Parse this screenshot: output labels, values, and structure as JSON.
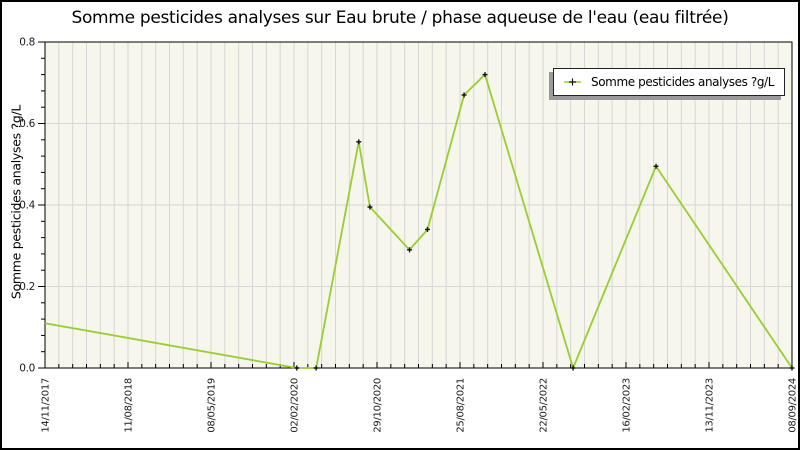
{
  "chart_data": {
    "type": "line",
    "title": "Somme pesticides analyses sur Eau brute / phase aqueuse de l'eau (eau filtrée)",
    "ylabel": "Somme pesticides analyses ?g/L",
    "xlabel": "",
    "ylim": [
      0.0,
      0.8
    ],
    "y_ticks": [
      "0.0",
      "0.2",
      "0.4",
      "0.6",
      "0.8"
    ],
    "y_minor_step": 0.04,
    "x_tick_labels": [
      "14/11/2017",
      "11/08/2018",
      "08/05/2019",
      "02/02/2020",
      "29/10/2020",
      "25/08/2021",
      "22/05/2022",
      "16/02/2023",
      "13/11/2023",
      "08/09/2024"
    ],
    "x_minor_divisions_per_interval": 6,
    "grid": true,
    "legend": {
      "position": "top-right",
      "entries": [
        "Somme pesticides analyses ?g/L"
      ]
    },
    "series": [
      {
        "name": "Somme pesticides analyses ?g/L",
        "color": "#9acd32",
        "marker_color": "#111111",
        "points": [
          {
            "x": 0.0,
            "y": 0.11,
            "marker": false,
            "date_est": "14/11/2017"
          },
          {
            "x": 0.337,
            "y": 0.0,
            "marker": true,
            "date_est": "~02/2020"
          },
          {
            "x": 0.363,
            "y": 0.0,
            "marker": true,
            "date_est": "~04/2020"
          },
          {
            "x": 0.42,
            "y": 0.555,
            "marker": true,
            "date_est": "~08/2020"
          },
          {
            "x": 0.435,
            "y": 0.395,
            "marker": true,
            "date_est": "~10/2020"
          },
          {
            "x": 0.488,
            "y": 0.29,
            "marker": true,
            "date_est": "~02/2021"
          },
          {
            "x": 0.512,
            "y": 0.34,
            "marker": true,
            "date_est": "~04/2021"
          },
          {
            "x": 0.561,
            "y": 0.67,
            "marker": true,
            "date_est": "~08/2021"
          },
          {
            "x": 0.589,
            "y": 0.72,
            "marker": true,
            "date_est": "~10/2021"
          },
          {
            "x": 0.707,
            "y": 0.0,
            "marker": true,
            "date_est": "~07/2022"
          },
          {
            "x": 0.818,
            "y": 0.495,
            "marker": true,
            "date_est": "~04/2023"
          },
          {
            "x": 1.0,
            "y": 0.0,
            "marker": true,
            "date_est": "08/09/2024"
          }
        ]
      }
    ]
  },
  "colors": {
    "plot_background": "#f6f6ec",
    "grid": "#d6d6d6",
    "axis": "#000000",
    "line": "#9acd32",
    "marker": "#111111",
    "legend_shadow": "#9a9a9a",
    "tick_label": "#1a1a1a"
  }
}
